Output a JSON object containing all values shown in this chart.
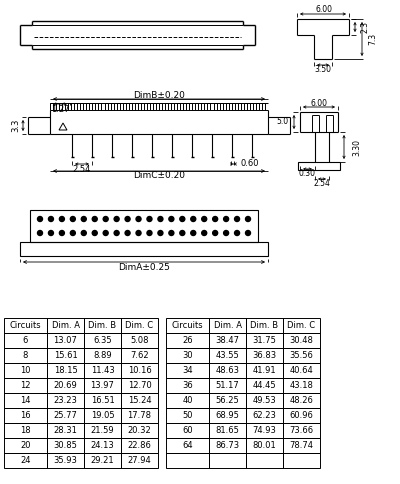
{
  "table1_headers": [
    "Circuits",
    "Dim. A",
    "Dim. B",
    "Dim. C"
  ],
  "table1_rows": [
    [
      "6",
      "13.07",
      "6.35",
      "5.08"
    ],
    [
      "8",
      "15.61",
      "8.89",
      "7.62"
    ],
    [
      "10",
      "18.15",
      "11.43",
      "10.16"
    ],
    [
      "12",
      "20.69",
      "13.97",
      "12.70"
    ],
    [
      "14",
      "23.23",
      "16.51",
      "15.24"
    ],
    [
      "16",
      "25.77",
      "19.05",
      "17.78"
    ],
    [
      "18",
      "28.31",
      "21.59",
      "20.32"
    ],
    [
      "20",
      "30.85",
      "24.13",
      "22.86"
    ],
    [
      "24",
      "35.93",
      "29.21",
      "27.94"
    ]
  ],
  "table2_headers": [
    "Circuits",
    "Dim. A",
    "Dim. B",
    "Dim. C"
  ],
  "table2_rows": [
    [
      "26",
      "38.47",
      "31.75",
      "30.48"
    ],
    [
      "30",
      "43.55",
      "36.83",
      "35.56"
    ],
    [
      "34",
      "48.63",
      "41.91",
      "40.64"
    ],
    [
      "36",
      "51.17",
      "44.45",
      "43.18"
    ],
    [
      "40",
      "56.25",
      "49.53",
      "48.26"
    ],
    [
      "50",
      "68.95",
      "62.23",
      "60.96"
    ],
    [
      "60",
      "81.65",
      "74.93",
      "73.66"
    ],
    [
      "64",
      "86.73",
      "80.01",
      "78.74"
    ],
    [
      "",
      "",
      "",
      ""
    ]
  ],
  "bg_color": "#ffffff",
  "line_color": "#000000",
  "text_color": "#000000"
}
